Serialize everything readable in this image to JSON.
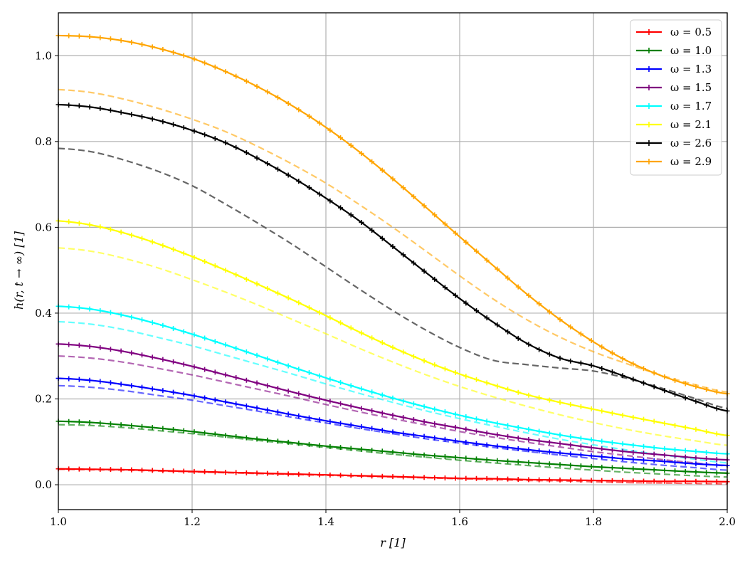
{
  "chart_data": {
    "type": "line",
    "xlabel": "r [1]",
    "ylabel": "h(r, t → ∞) [1]",
    "xlim": [
      1.0,
      2.0
    ],
    "ylim": [
      -0.058,
      1.1
    ],
    "x_ticks": [
      "1.0",
      "1.2",
      "1.4",
      "1.6",
      "1.8",
      "2.0"
    ],
    "y_ticks": [
      "0.0",
      "0.2",
      "0.4",
      "0.6",
      "0.8",
      "1.0"
    ],
    "grid": true,
    "legend_position": "top-right",
    "x": [
      1.0,
      1.05,
      1.1,
      1.15,
      1.2,
      1.25,
      1.3,
      1.35,
      1.4,
      1.45,
      1.5,
      1.55,
      1.6,
      1.65,
      1.7,
      1.75,
      1.8,
      1.85,
      1.9,
      1.95,
      2.0
    ],
    "series": [
      {
        "name": "ω = 0.5",
        "color": "#ff0000",
        "marker": "plus",
        "values": [
          0.037,
          0.036,
          0.035,
          0.033,
          0.031,
          0.029,
          0.027,
          0.025,
          0.023,
          0.021,
          0.019,
          0.017,
          0.015,
          0.014,
          0.012,
          0.011,
          0.01,
          0.009,
          0.008,
          0.008,
          0.007
        ],
        "dashed": [
          0.036,
          0.035,
          0.034,
          0.032,
          0.03,
          0.028,
          0.026,
          0.024,
          0.022,
          0.02,
          0.018,
          0.016,
          0.014,
          0.012,
          0.01,
          0.009,
          0.007,
          0.005,
          0.004,
          0.003,
          0.002
        ]
      },
      {
        "name": "ω = 1.0",
        "color": "#008000",
        "marker": "plus",
        "values": [
          0.148,
          0.145,
          0.139,
          0.132,
          0.124,
          0.115,
          0.106,
          0.098,
          0.09,
          0.083,
          0.076,
          0.069,
          0.063,
          0.057,
          0.052,
          0.047,
          0.042,
          0.038,
          0.034,
          0.03,
          0.027
        ],
        "dashed": [
          0.14,
          0.138,
          0.133,
          0.126,
          0.119,
          0.111,
          0.103,
          0.095,
          0.087,
          0.079,
          0.071,
          0.064,
          0.057,
          0.051,
          0.045,
          0.039,
          0.034,
          0.029,
          0.025,
          0.021,
          0.018
        ]
      },
      {
        "name": "ω = 1.3",
        "color": "#0000ff",
        "marker": "plus",
        "values": [
          0.248,
          0.243,
          0.233,
          0.221,
          0.208,
          0.193,
          0.178,
          0.163,
          0.149,
          0.136,
          0.123,
          0.112,
          0.101,
          0.091,
          0.082,
          0.074,
          0.067,
          0.06,
          0.055,
          0.049,
          0.045
        ],
        "dashed": [
          0.231,
          0.227,
          0.219,
          0.208,
          0.197,
          0.184,
          0.171,
          0.157,
          0.144,
          0.131,
          0.119,
          0.107,
          0.097,
          0.087,
          0.078,
          0.069,
          0.061,
          0.053,
          0.046,
          0.04,
          0.034
        ]
      },
      {
        "name": "ω = 1.5",
        "color": "#800080",
        "marker": "plus",
        "values": [
          0.328,
          0.322,
          0.31,
          0.294,
          0.276,
          0.256,
          0.236,
          0.216,
          0.197,
          0.179,
          0.162,
          0.146,
          0.132,
          0.118,
          0.106,
          0.096,
          0.086,
          0.077,
          0.07,
          0.063,
          0.058
        ],
        "dashed": [
          0.3,
          0.295,
          0.285,
          0.271,
          0.256,
          0.239,
          0.222,
          0.205,
          0.187,
          0.17,
          0.154,
          0.139,
          0.124,
          0.111,
          0.099,
          0.088,
          0.077,
          0.068,
          0.059,
          0.051,
          0.044
        ]
      },
      {
        "name": "ω = 1.7",
        "color": "#00ffff",
        "marker": "plus",
        "values": [
          0.416,
          0.409,
          0.394,
          0.374,
          0.351,
          0.326,
          0.3,
          0.274,
          0.249,
          0.225,
          0.202,
          0.181,
          0.162,
          0.145,
          0.13,
          0.116,
          0.104,
          0.094,
          0.085,
          0.078,
          0.072
        ],
        "dashed": [
          0.38,
          0.374,
          0.361,
          0.343,
          0.324,
          0.302,
          0.28,
          0.258,
          0.235,
          0.213,
          0.192,
          0.172,
          0.154,
          0.137,
          0.121,
          0.106,
          0.093,
          0.081,
          0.07,
          0.06,
          0.051
        ]
      },
      {
        "name": "ω = 2.1",
        "color": "#ffff00",
        "marker": "plus",
        "values": [
          0.615,
          0.605,
          0.586,
          0.561,
          0.532,
          0.5,
          0.466,
          0.431,
          0.394,
          0.356,
          0.32,
          0.287,
          0.258,
          0.233,
          0.21,
          0.192,
          0.176,
          0.16,
          0.145,
          0.13,
          0.115
        ],
        "dashed": [
          0.552,
          0.544,
          0.527,
          0.505,
          0.478,
          0.449,
          0.418,
          0.385,
          0.352,
          0.318,
          0.286,
          0.256,
          0.229,
          0.205,
          0.183,
          0.163,
          0.145,
          0.129,
          0.115,
          0.103,
          0.092
        ]
      },
      {
        "name": "ω = 2.6",
        "color": "#000000",
        "marker": "plus",
        "values": [
          0.886,
          0.88,
          0.866,
          0.849,
          0.826,
          0.797,
          0.759,
          0.716,
          0.668,
          0.615,
          0.555,
          0.494,
          0.434,
          0.379,
          0.33,
          0.295,
          0.277,
          0.251,
          0.223,
          0.196,
          0.172
        ],
        "dashed": [
          0.784,
          0.776,
          0.756,
          0.73,
          0.697,
          0.654,
          0.608,
          0.56,
          0.508,
          0.456,
          0.406,
          0.36,
          0.32,
          0.29,
          0.28,
          0.272,
          0.265,
          0.248,
          0.226,
          0.202,
          0.178
        ]
      },
      {
        "name": "ω = 2.9",
        "color": "#ffa500",
        "marker": "plus",
        "values": [
          1.047,
          1.044,
          1.034,
          1.017,
          0.994,
          0.963,
          0.926,
          0.883,
          0.833,
          0.776,
          0.713,
          0.646,
          0.578,
          0.511,
          0.445,
          0.385,
          0.333,
          0.289,
          0.255,
          0.23,
          0.212
        ],
        "dashed": [
          0.921,
          0.914,
          0.898,
          0.877,
          0.852,
          0.823,
          0.787,
          0.747,
          0.703,
          0.653,
          0.6,
          0.544,
          0.487,
          0.433,
          0.385,
          0.344,
          0.31,
          0.282,
          0.256,
          0.234,
          0.216
        ]
      }
    ]
  }
}
